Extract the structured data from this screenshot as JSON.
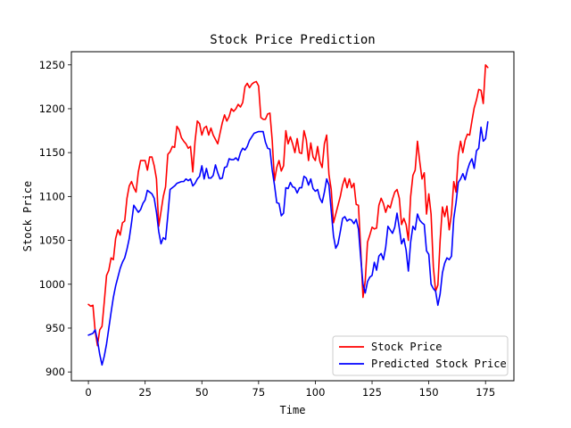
{
  "chart_data": {
    "type": "line",
    "title": "Stock Price Prediction",
    "xlabel": "Time",
    "ylabel": "Stock Price",
    "xlim": [
      -7.5,
      187.5
    ],
    "ylim": [
      890,
      1265
    ],
    "xticks": [
      0,
      25,
      50,
      75,
      100,
      125,
      150,
      175
    ],
    "yticks": [
      900,
      950,
      1000,
      1050,
      1100,
      1150,
      1200,
      1250
    ],
    "grid": false,
    "legend_position": "lower-right",
    "series": [
      {
        "name": "Stock Price",
        "color": "#ff0000",
        "values": [
          977,
          975,
          976,
          946,
          930,
          948,
          952,
          980,
          1010,
          1016,
          1030,
          1028,
          1052,
          1062,
          1056,
          1070,
          1072,
          1098,
          1112,
          1117,
          1110,
          1105,
          1128,
          1141,
          1141,
          1141,
          1130,
          1145,
          1145,
          1135,
          1120,
          1066,
          1083,
          1100,
          1111,
          1148,
          1151,
          1157,
          1156,
          1180,
          1176,
          1167,
          1163,
          1160,
          1155,
          1157,
          1128,
          1163,
          1186,
          1183,
          1170,
          1178,
          1180,
          1170,
          1178,
          1170,
          1165,
          1160,
          1172,
          1184,
          1193,
          1186,
          1191,
          1200,
          1197,
          1200,
          1205,
          1202,
          1207,
          1225,
          1229,
          1224,
          1228,
          1230,
          1231,
          1226,
          1190,
          1188,
          1188,
          1194,
          1195,
          1164,
          1118,
          1133,
          1141,
          1129,
          1135,
          1175,
          1160,
          1168,
          1160,
          1150,
          1166,
          1150,
          1149,
          1175,
          1165,
          1141,
          1161,
          1145,
          1141,
          1157,
          1140,
          1133,
          1160,
          1170,
          1125,
          1108,
          1070,
          1080,
          1090,
          1100,
          1113,
          1121,
          1110,
          1120,
          1110,
          1115,
          1091,
          1090,
          1040,
          985,
          1004,
          1048,
          1056,
          1065,
          1063,
          1064,
          1090,
          1098,
          1092,
          1082,
          1090,
          1087,
          1097,
          1105,
          1108,
          1098,
          1068,
          1075,
          1068,
          1050,
          1100,
          1124,
          1130,
          1163,
          1140,
          1120,
          1127,
          1080,
          1103,
          1080,
          1020,
          992,
          999,
          1050,
          1088,
          1077,
          1089,
          1062,
          1080,
          1117,
          1105,
          1147,
          1163,
          1150,
          1164,
          1171,
          1170,
          1186,
          1201,
          1210,
          1222,
          1221,
          1206,
          1250,
          1247
        ]
      },
      {
        "name": "Predicted Stock Price",
        "color": "#0000ff",
        "values": [
          942,
          943,
          944,
          948,
          936,
          920,
          908,
          918,
          932,
          950,
          968,
          985,
          998,
          1008,
          1018,
          1025,
          1030,
          1040,
          1052,
          1070,
          1090,
          1086,
          1082,
          1085,
          1092,
          1096,
          1107,
          1105,
          1103,
          1098,
          1082,
          1060,
          1046,
          1053,
          1051,
          1078,
          1108,
          1110,
          1112,
          1115,
          1116,
          1117,
          1117,
          1120,
          1118,
          1120,
          1112,
          1115,
          1120,
          1123,
          1135,
          1120,
          1132,
          1121,
          1121,
          1124,
          1136,
          1127,
          1120,
          1121,
          1133,
          1134,
          1143,
          1142,
          1142,
          1144,
          1141,
          1150,
          1155,
          1153,
          1157,
          1164,
          1168,
          1172,
          1173,
          1174,
          1174,
          1174,
          1162,
          1155,
          1154,
          1130,
          1113,
          1093,
          1092,
          1078,
          1081,
          1110,
          1109,
          1116,
          1111,
          1110,
          1104,
          1110,
          1110,
          1123,
          1121,
          1113,
          1120,
          1109,
          1106,
          1108,
          1098,
          1093,
          1105,
          1120,
          1113,
          1084,
          1055,
          1041,
          1046,
          1060,
          1075,
          1077,
          1072,
          1074,
          1073,
          1069,
          1074,
          1063,
          1030,
          1000,
          990,
          1003,
          1008,
          1010,
          1025,
          1016,
          1032,
          1035,
          1028,
          1042,
          1066,
          1062,
          1058,
          1065,
          1081,
          1064,
          1046,
          1052,
          1039,
          1015,
          1048,
          1066,
          1062,
          1080,
          1073,
          1070,
          1068,
          1038,
          1034,
          1000,
          995,
          992,
          976,
          989,
          1013,
          1024,
          1030,
          1028,
          1032,
          1075,
          1093,
          1116,
          1120,
          1126,
          1119,
          1130,
          1138,
          1143,
          1132,
          1152,
          1155,
          1179,
          1163,
          1166,
          1185
        ]
      }
    ]
  }
}
